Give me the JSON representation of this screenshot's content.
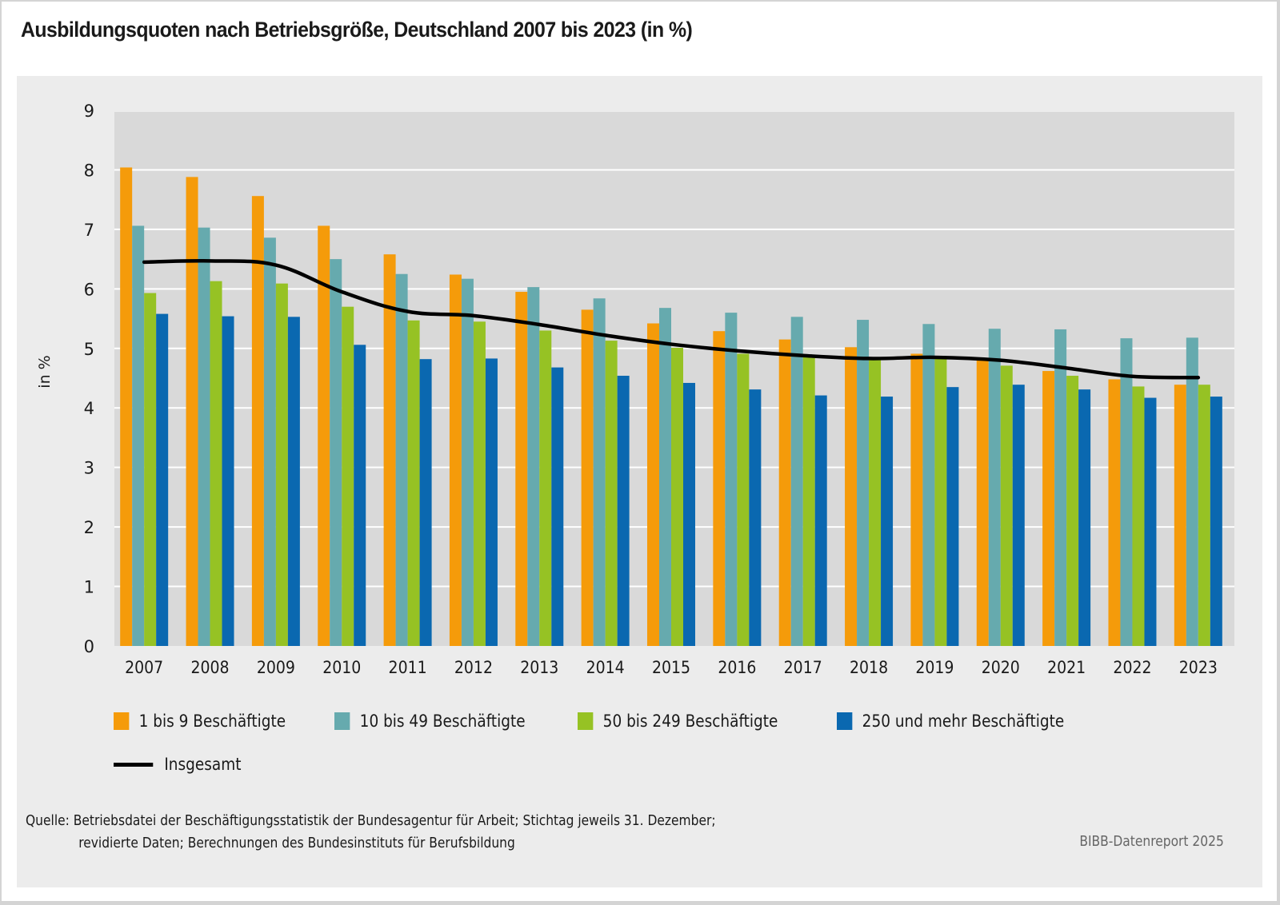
{
  "title": "Ausbildungsquoten nach Betriebsgröße, Deutschland 2007 bis 2023 (in %)",
  "chart_data": {
    "type": "bar",
    "title": "Ausbildungsquoten nach Betriebsgröße, Deutschland 2007 bis 2023 (in %)",
    "xlabel": "",
    "ylabel": "in %",
    "ylim": [
      0,
      9
    ],
    "yticks": [
      "0",
      "1",
      "2",
      "3",
      "4",
      "5",
      "6",
      "7",
      "8",
      "9"
    ],
    "grid": true,
    "legend_position": "bottom",
    "categories": [
      "2007",
      "2008",
      "2009",
      "2010",
      "2011",
      "2012",
      "2013",
      "2014",
      "2015",
      "2016",
      "2017",
      "2018",
      "2019",
      "2020",
      "2021",
      "2022",
      "2023"
    ],
    "series": [
      {
        "name": "1 bis 9 Beschäftigte",
        "type": "bar",
        "color": "#F59B0A",
        "values": [
          8.04,
          7.88,
          7.56,
          7.06,
          6.58,
          6.24,
          5.95,
          5.65,
          5.42,
          5.29,
          5.15,
          5.02,
          4.91,
          4.82,
          4.62,
          4.48,
          4.39
        ]
      },
      {
        "name": "10 bis 49 Beschäftigte",
        "type": "bar",
        "color": "#66AAAE",
        "values": [
          7.06,
          7.03,
          6.86,
          6.5,
          6.25,
          6.17,
          6.03,
          5.84,
          5.68,
          5.6,
          5.53,
          5.48,
          5.41,
          5.33,
          5.32,
          5.17,
          5.18
        ]
      },
      {
        "name": "50 bis 249 Beschäftigte",
        "type": "bar",
        "color": "#96C224",
        "values": [
          5.93,
          6.13,
          6.09,
          5.7,
          5.47,
          5.45,
          5.3,
          5.13,
          5.01,
          4.91,
          4.85,
          4.82,
          4.85,
          4.71,
          4.54,
          4.36,
          4.39
        ]
      },
      {
        "name": "250 und mehr Beschäftigte",
        "type": "bar",
        "color": "#0A68B0",
        "values": [
          5.58,
          5.54,
          5.53,
          5.06,
          4.82,
          4.83,
          4.68,
          4.54,
          4.42,
          4.31,
          4.21,
          4.19,
          4.35,
          4.39,
          4.31,
          4.17,
          4.19
        ]
      },
      {
        "name": "Insgesamt",
        "type": "line",
        "color": "#000000",
        "values": [
          6.45,
          6.47,
          6.4,
          5.95,
          5.62,
          5.55,
          5.4,
          5.22,
          5.07,
          4.96,
          4.88,
          4.83,
          4.85,
          4.8,
          4.67,
          4.53,
          4.51
        ]
      }
    ]
  },
  "legend": {
    "items": [
      {
        "label": "1 bis 9 Beschäftigte",
        "color": "#F59B0A"
      },
      {
        "label": "10 bis 49 Beschäftigte",
        "color": "#66AAAE"
      },
      {
        "label": "50 bis 249 Beschäftigte",
        "color": "#96C224"
      },
      {
        "label": "250 und mehr Beschäftigte",
        "color": "#0A68B0"
      }
    ],
    "line_label": "Insgesamt"
  },
  "source": {
    "line1": "Quelle: Betriebsdatei der Beschäftigungsstatistik der Bundesagentur für Arbeit; Stichtag jeweils 31. Dezember;",
    "line2": "revidierte Daten; Berechnungen des Bundesinstituts für Berufsbildung"
  },
  "credit": "BIBB-Datenreport 2025"
}
